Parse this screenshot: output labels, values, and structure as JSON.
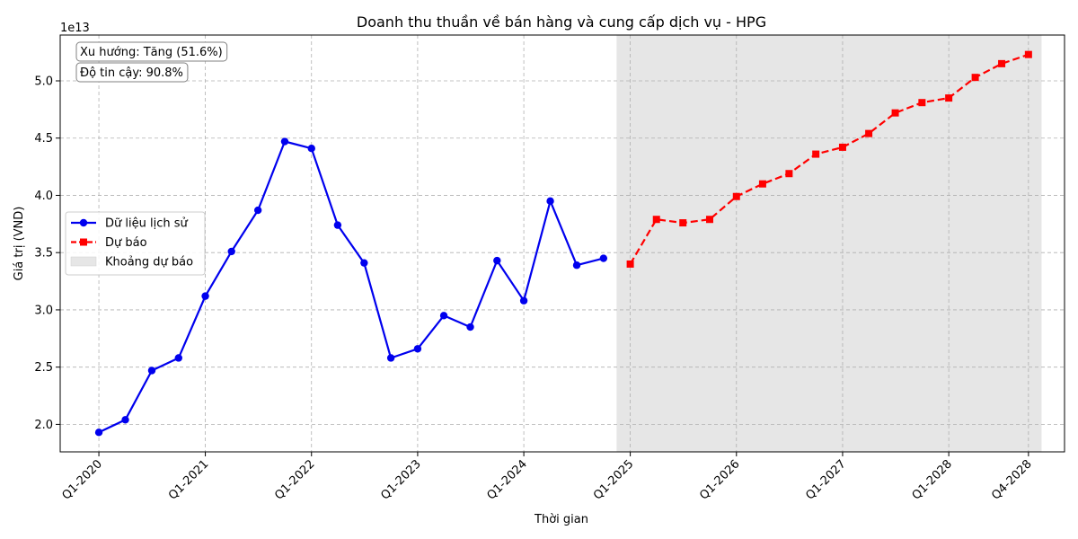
{
  "chart_data": {
    "type": "line",
    "title": "Doanh thu thuần về bán hàng và cung cấp dịch vụ - HPG",
    "xlabel": "Thời gian",
    "ylabel": "Giá trị (VND)",
    "y_scale_label": "1e13",
    "y_scale": 10000000000000,
    "ylim": [
      1.76,
      5.4
    ],
    "yticks": [
      2.0,
      2.5,
      3.0,
      3.5,
      4.0,
      4.5,
      5.0
    ],
    "ytick_labels": [
      "2.0",
      "2.5",
      "3.0",
      "3.5",
      "4.0",
      "4.5",
      "5.0"
    ],
    "xlim": [
      "2019-08-21",
      "2029-02-02"
    ],
    "xticks": [
      "2020-01-01",
      "2021-01-01",
      "2022-01-01",
      "2023-01-01",
      "2024-01-01",
      "2025-01-01",
      "2026-01-01",
      "2027-01-01",
      "2028-01-01",
      "2028-10-01"
    ],
    "xtick_labels": [
      "Q1-2020",
      "Q1-2021",
      "Q1-2022",
      "Q1-2023",
      "Q1-2024",
      "Q1-2025",
      "Q1-2026",
      "Q1-2027",
      "Q1-2028",
      "Q4-2028"
    ],
    "grid": true,
    "legend_position": "center-left",
    "forecast_band": {
      "x_start": "2024-11-15",
      "x_end": "2028-11-15",
      "color": "#e6e6e6",
      "label": "Khoảng dự báo"
    },
    "series": [
      {
        "name": "Dữ liệu lịch sử",
        "color": "#0000ee",
        "style": "solid",
        "marker": "circle",
        "points": [
          {
            "x": "2020-01-01",
            "y": 1.93
          },
          {
            "x": "2020-04-01",
            "y": 2.04
          },
          {
            "x": "2020-07-01",
            "y": 2.47
          },
          {
            "x": "2020-10-01",
            "y": 2.58
          },
          {
            "x": "2021-01-01",
            "y": 3.12
          },
          {
            "x": "2021-04-01",
            "y": 3.51
          },
          {
            "x": "2021-07-01",
            "y": 3.87
          },
          {
            "x": "2021-10-01",
            "y": 4.47
          },
          {
            "x": "2022-01-01",
            "y": 4.41
          },
          {
            "x": "2022-04-01",
            "y": 3.74
          },
          {
            "x": "2022-07-01",
            "y": 3.41
          },
          {
            "x": "2022-10-01",
            "y": 2.58
          },
          {
            "x": "2023-01-01",
            "y": 2.66
          },
          {
            "x": "2023-04-01",
            "y": 2.95
          },
          {
            "x": "2023-07-01",
            "y": 2.85
          },
          {
            "x": "2023-10-01",
            "y": 3.43
          },
          {
            "x": "2024-01-01",
            "y": 3.08
          },
          {
            "x": "2024-04-01",
            "y": 3.95
          },
          {
            "x": "2024-07-01",
            "y": 3.39
          },
          {
            "x": "2024-10-01",
            "y": 3.45
          }
        ]
      },
      {
        "name": "Dự báo",
        "color": "#ff0000",
        "style": "dashed",
        "marker": "square",
        "points": [
          {
            "x": "2025-01-01",
            "y": 3.4
          },
          {
            "x": "2025-04-01",
            "y": 3.79
          },
          {
            "x": "2025-07-01",
            "y": 3.76
          },
          {
            "x": "2025-10-01",
            "y": 3.79
          },
          {
            "x": "2026-01-01",
            "y": 3.99
          },
          {
            "x": "2026-04-01",
            "y": 4.1
          },
          {
            "x": "2026-07-01",
            "y": 4.19
          },
          {
            "x": "2026-10-01",
            "y": 4.36
          },
          {
            "x": "2027-01-01",
            "y": 4.42
          },
          {
            "x": "2027-04-01",
            "y": 4.54
          },
          {
            "x": "2027-07-01",
            "y": 4.72
          },
          {
            "x": "2027-10-01",
            "y": 4.81
          },
          {
            "x": "2028-01-01",
            "y": 4.85
          },
          {
            "x": "2028-04-01",
            "y": 5.03
          },
          {
            "x": "2028-07-01",
            "y": 5.15
          },
          {
            "x": "2028-10-01",
            "y": 5.23
          }
        ]
      }
    ],
    "annotations": [
      "Xu hướng: Tăng (51.6%)",
      "Độ tin cậy: 90.8%"
    ]
  }
}
